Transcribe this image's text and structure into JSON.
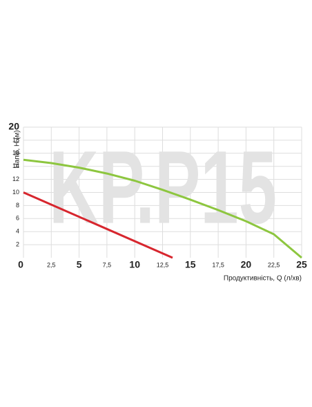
{
  "chart_data": {
    "type": "line",
    "watermark": "KP.P15",
    "y_label": "Напір, H (м)",
    "x_label": "Продуктивність, Q (л/хв)",
    "xlim": [
      0,
      25
    ],
    "ylim": [
      0,
      20
    ],
    "xticks": [
      0,
      {
        "value": 2.5,
        "label": "2,5"
      },
      5,
      {
        "value": 7.5,
        "label": "7,5"
      },
      10,
      {
        "value": 12.5,
        "label": "12,5"
      },
      15,
      {
        "value": 17.5,
        "label": "17,5"
      },
      20,
      {
        "value": 22.5,
        "label": "22,5"
      },
      25
    ],
    "yticks": [
      2,
      4,
      6,
      8,
      10,
      12,
      14,
      16,
      18,
      20
    ],
    "grid": true,
    "series": [
      {
        "color": "#8dc63f",
        "x": [
          0,
          2.5,
          5,
          7.5,
          10,
          12.5,
          15,
          17.5,
          20,
          22.5,
          25
        ],
        "values": [
          15,
          14.5,
          13.8,
          12.9,
          11.8,
          10.4,
          8.9,
          7.3,
          5.6,
          3.6,
          0
        ]
      },
      {
        "color": "#d7262e",
        "x": [
          0,
          13.4
        ],
        "values": [
          10,
          0
        ]
      }
    ]
  }
}
